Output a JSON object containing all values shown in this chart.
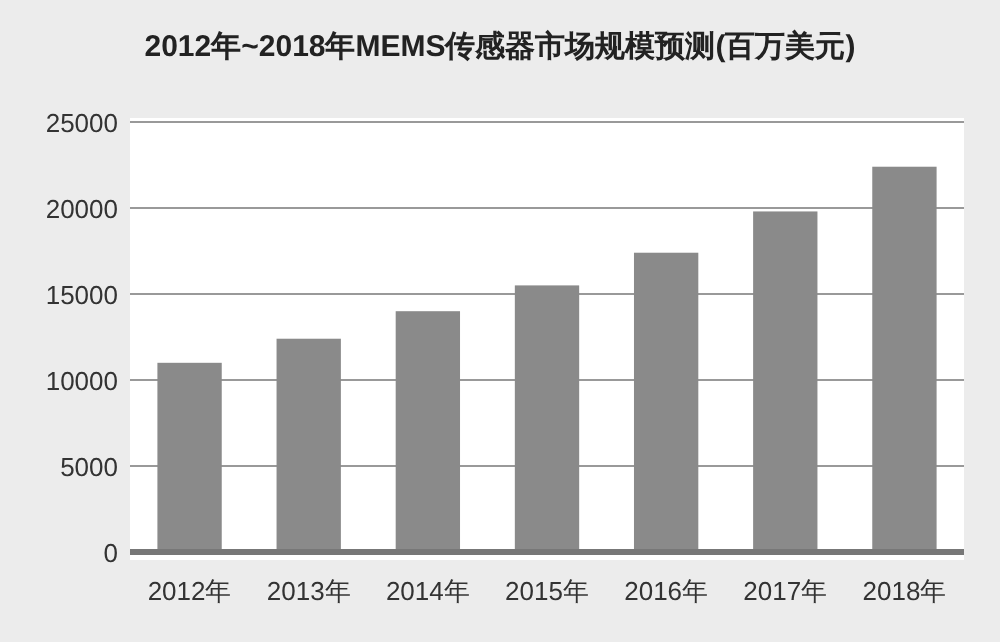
{
  "chart_data": {
    "type": "bar",
    "title": "2012年~2018年MEMS传感器市场规模预测(百万美元)",
    "categories": [
      "2012年",
      "2013年",
      "2014年",
      "2015年",
      "2016年",
      "2017年",
      "2018年"
    ],
    "values": [
      11000,
      12400,
      14000,
      15500,
      17400,
      19800,
      22400
    ],
    "color": "#8a8a8a",
    "ylim": [
      0,
      25000
    ],
    "yticks": [
      0,
      5000,
      10000,
      15000,
      20000,
      25000
    ],
    "grid": "y"
  }
}
